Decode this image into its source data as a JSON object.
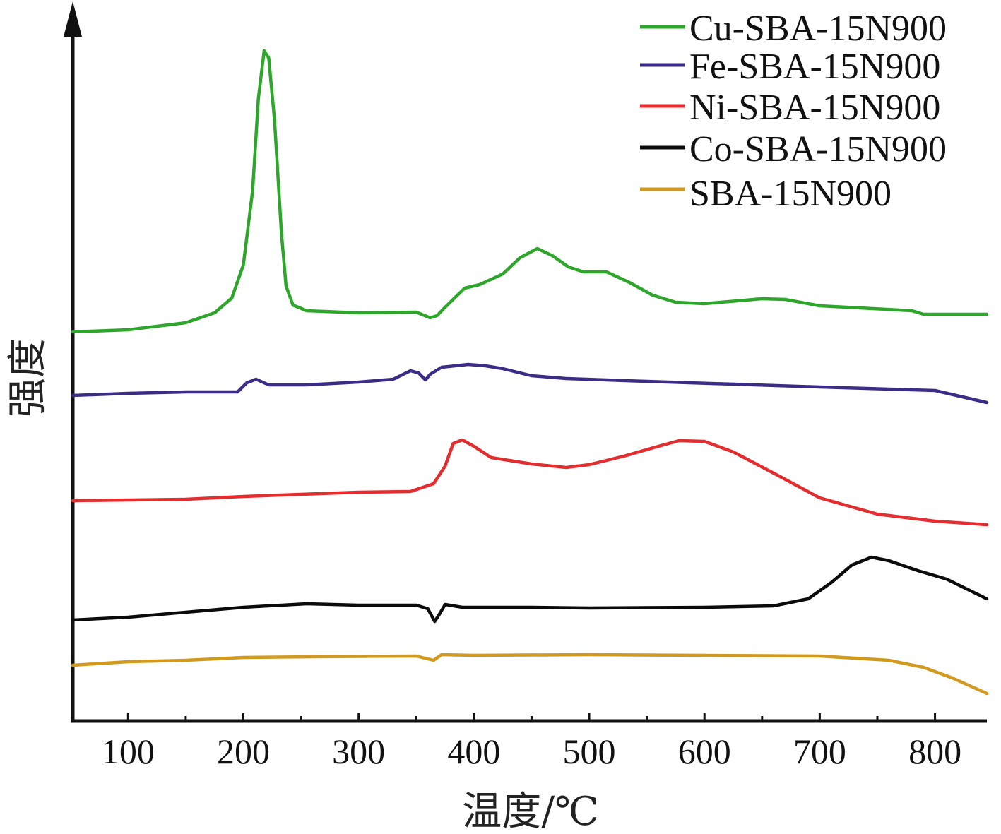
{
  "chart_data": {
    "type": "line",
    "xlabel": "温度/℃",
    "ylabel": "强度",
    "xlim": [
      52,
      845
    ],
    "xticks": [
      "100",
      "200",
      "300",
      "400",
      "500",
      "600",
      "700",
      "800"
    ],
    "yticks_visible": false,
    "legend_position": "top-right",
    "series": [
      {
        "name": "Cu-SBA-15N900",
        "color": "#2ea52b",
        "points": [
          [
            52,
            470
          ],
          [
            100,
            467
          ],
          [
            150,
            457
          ],
          [
            175,
            443
          ],
          [
            190,
            422
          ],
          [
            200,
            375
          ],
          [
            208,
            270
          ],
          [
            213,
            140
          ],
          [
            218,
            72
          ],
          [
            222,
            82
          ],
          [
            227,
            170
          ],
          [
            233,
            330
          ],
          [
            237,
            405
          ],
          [
            243,
            432
          ],
          [
            255,
            440
          ],
          [
            300,
            443
          ],
          [
            350,
            442
          ],
          [
            362,
            450
          ],
          [
            368,
            447
          ],
          [
            375,
            435
          ],
          [
            392,
            408
          ],
          [
            405,
            403
          ],
          [
            425,
            388
          ],
          [
            440,
            365
          ],
          [
            455,
            352
          ],
          [
            468,
            362
          ],
          [
            482,
            378
          ],
          [
            495,
            385
          ],
          [
            515,
            385
          ],
          [
            535,
            400
          ],
          [
            555,
            418
          ],
          [
            575,
            428
          ],
          [
            600,
            430
          ],
          [
            650,
            423
          ],
          [
            670,
            424
          ],
          [
            700,
            433
          ],
          [
            780,
            440
          ],
          [
            790,
            445
          ],
          [
            845,
            445
          ]
        ]
      },
      {
        "name": "Fe-SBA-15N900",
        "color": "#3d2c86",
        "points": [
          [
            52,
            560
          ],
          [
            100,
            557
          ],
          [
            150,
            555
          ],
          [
            195,
            555
          ],
          [
            203,
            542
          ],
          [
            211,
            537
          ],
          [
            222,
            545
          ],
          [
            255,
            545
          ],
          [
            300,
            541
          ],
          [
            330,
            537
          ],
          [
            345,
            525
          ],
          [
            352,
            528
          ],
          [
            358,
            538
          ],
          [
            362,
            530
          ],
          [
            372,
            520
          ],
          [
            395,
            516
          ],
          [
            410,
            518
          ],
          [
            425,
            522
          ],
          [
            450,
            532
          ],
          [
            480,
            536
          ],
          [
            550,
            540
          ],
          [
            700,
            548
          ],
          [
            800,
            553
          ],
          [
            845,
            570
          ]
        ]
      },
      {
        "name": "Ni-SBA-15N900",
        "color": "#e32d2f",
        "points": [
          [
            52,
            709
          ],
          [
            150,
            707
          ],
          [
            200,
            703
          ],
          [
            300,
            697
          ],
          [
            345,
            696
          ],
          [
            365,
            685
          ],
          [
            375,
            660
          ],
          [
            382,
            628
          ],
          [
            390,
            623
          ],
          [
            400,
            632
          ],
          [
            415,
            648
          ],
          [
            450,
            657
          ],
          [
            480,
            662
          ],
          [
            500,
            658
          ],
          [
            530,
            646
          ],
          [
            560,
            632
          ],
          [
            578,
            624
          ],
          [
            600,
            625
          ],
          [
            625,
            640
          ],
          [
            660,
            670
          ],
          [
            700,
            705
          ],
          [
            750,
            728
          ],
          [
            800,
            738
          ],
          [
            845,
            743
          ]
        ]
      },
      {
        "name": "Co-SBA-15N900",
        "color": "#0b0b0b",
        "points": [
          [
            52,
            878
          ],
          [
            100,
            874
          ],
          [
            150,
            867
          ],
          [
            200,
            860
          ],
          [
            255,
            855
          ],
          [
            300,
            857
          ],
          [
            350,
            857
          ],
          [
            360,
            862
          ],
          [
            366,
            880
          ],
          [
            370,
            870
          ],
          [
            375,
            856
          ],
          [
            390,
            860
          ],
          [
            450,
            860
          ],
          [
            500,
            861
          ],
          [
            600,
            860
          ],
          [
            660,
            858
          ],
          [
            690,
            848
          ],
          [
            710,
            825
          ],
          [
            728,
            800
          ],
          [
            745,
            789
          ],
          [
            760,
            794
          ],
          [
            785,
            808
          ],
          [
            810,
            820
          ],
          [
            845,
            848
          ]
        ]
      },
      {
        "name": "SBA-15N900",
        "color": "#d19a1f",
        "points": [
          [
            52,
            942
          ],
          [
            100,
            937
          ],
          [
            150,
            935
          ],
          [
            200,
            931
          ],
          [
            260,
            930
          ],
          [
            350,
            929
          ],
          [
            365,
            935
          ],
          [
            372,
            927
          ],
          [
            400,
            928
          ],
          [
            500,
            927
          ],
          [
            600,
            928
          ],
          [
            700,
            929
          ],
          [
            760,
            935
          ],
          [
            790,
            945
          ],
          [
            815,
            960
          ],
          [
            845,
            982
          ]
        ]
      }
    ]
  }
}
